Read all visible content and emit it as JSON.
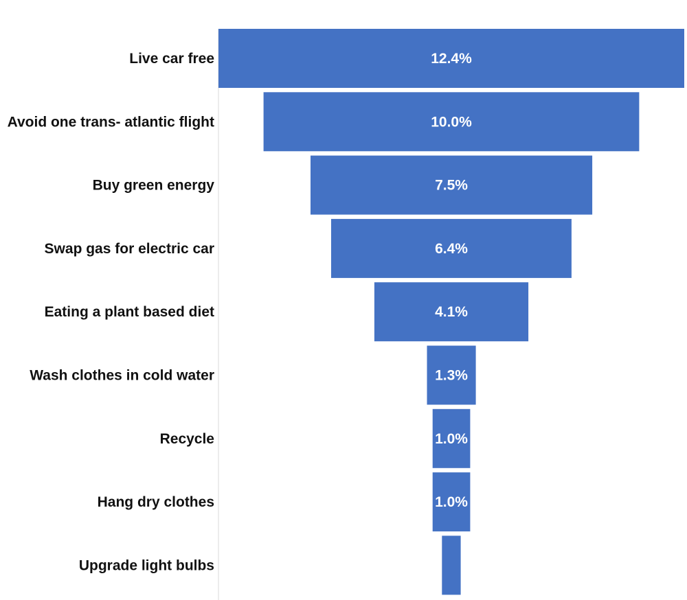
{
  "chart_data": {
    "type": "bar",
    "subtype": "funnel",
    "title": "",
    "xlabel": "",
    "ylabel": "",
    "categories": [
      "Live car free",
      "Avoid one trans- atlantic flight",
      "Buy green energy",
      "Swap gas for electric car",
      "Eating a plant based diet",
      "Wash clothes in cold water",
      "Recycle",
      "Hang dry clothes",
      "Upgrade light bulbs"
    ],
    "values": [
      12.4,
      10.0,
      7.5,
      6.4,
      4.1,
      1.3,
      1.0,
      1.0,
      0.5
    ],
    "value_labels": [
      "12.4%",
      "10.0%",
      "7.5%",
      "6.4%",
      "4.1%",
      "1.3%",
      "1.0%",
      "1.0%",
      ""
    ],
    "bar_color": "#4472C4",
    "value_label_color": "#FFFFFF",
    "category_label_color": "#111111",
    "axis_line_color": "#D9D9D9",
    "grid": false,
    "legend": "none"
  }
}
